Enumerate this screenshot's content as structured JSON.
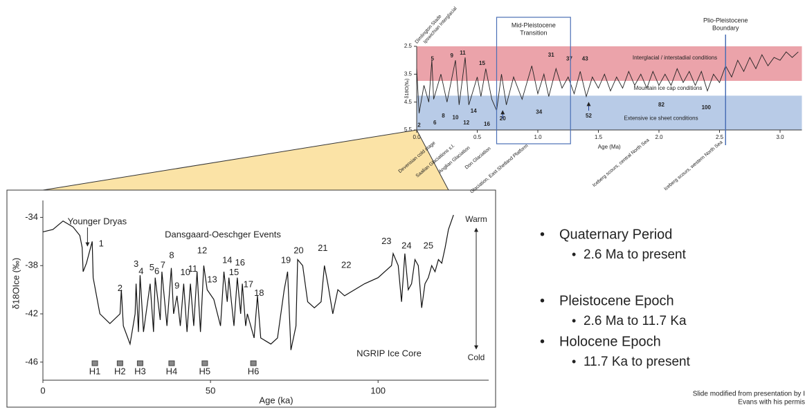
{
  "chart_data": [
    {
      "type": "line",
      "xlabel": "Age (Ma)",
      "ylabel": "δ18O(‰)",
      "color": "#222222",
      "x": [
        0.0,
        0.02,
        0.06,
        0.1,
        0.125,
        0.14,
        0.2,
        0.25,
        0.32,
        0.35,
        0.4,
        0.43,
        0.5,
        0.53,
        0.57,
        0.62,
        0.66,
        0.7,
        0.74,
        0.8,
        0.87,
        0.95,
        1.0,
        1.05,
        1.09,
        1.15,
        1.2,
        1.25,
        1.3,
        1.35,
        1.4,
        1.45,
        1.5,
        1.55,
        1.6,
        1.65,
        1.7,
        1.75,
        1.8,
        1.85,
        1.9,
        1.95,
        2.0,
        2.05,
        2.1,
        2.15,
        2.2,
        2.25,
        2.3,
        2.35,
        2.4,
        2.45,
        2.5,
        2.55,
        2.6,
        2.65,
        2.7,
        2.75,
        2.8,
        2.85,
        2.9,
        2.95,
        3.0,
        3.05,
        3.1,
        3.15
      ],
      "values": [
        3.3,
        4.9,
        3.9,
        4.5,
        3.0,
        4.4,
        3.5,
        4.5,
        3.0,
        4.6,
        2.9,
        4.6,
        3.6,
        4.3,
        3.3,
        4.4,
        4.8,
        3.5,
        4.6,
        3.6,
        4.4,
        3.2,
        4.2,
        3.5,
        4.3,
        3.3,
        4.0,
        3.6,
        4.2,
        3.4,
        4.3,
        3.6,
        4.0,
        3.5,
        4.1,
        3.6,
        4.0,
        3.4,
        3.9,
        3.5,
        4.0,
        3.4,
        3.9,
        3.5,
        3.9,
        3.3,
        3.8,
        3.4,
        3.9,
        3.4,
        4.1,
        3.5,
        3.8,
        3.2,
        3.6,
        3.0,
        3.4,
        2.9,
        3.3,
        2.8,
        3.2,
        2.9,
        3.0,
        2.7,
        2.9,
        2.7
      ],
      "xlim": [
        0,
        3.18
      ],
      "ylim": [
        2.5,
        5.5
      ],
      "yreverse": true,
      "xticks": [
        {
          "value": 0,
          "label": "0.0"
        },
        0.5,
        {
          "value": 1,
          "label": "1.0"
        },
        1.5,
        {
          "value": 2,
          "label": "2.0"
        },
        2.5,
        {
          "value": 3,
          "label": "3.0"
        }
      ],
      "yticks": [
        2.5,
        3.5,
        4.5,
        5.5
      ],
      "bands": [
        {
          "label": "Interglacial / interstadial conditions",
          "range": [
            2.5,
            3.74
          ],
          "color": "#eba3aa"
        },
        {
          "label": "Mountain ice cap conditions",
          "range": [
            3.74,
            4.27
          ],
          "color": "#ffffff"
        },
        {
          "label": "Extensive ice sheet conditions",
          "range": [
            4.27,
            5.5
          ],
          "color": "#b8cbe7"
        }
      ],
      "annotations": [
        {
          "text": "5",
          "x": 0.13,
          "y": 2.95,
          "color": "#c0001a"
        },
        {
          "text": "9",
          "x": 0.29,
          "y": 2.85,
          "color": "#c0001a"
        },
        {
          "text": "11",
          "x": 0.38,
          "y": 2.75,
          "color": "#c0001a"
        },
        {
          "text": "15",
          "x": 0.54,
          "y": 3.12,
          "color": "#c0001a"
        },
        {
          "text": "31",
          "x": 1.11,
          "y": 2.82,
          "color": "#c0001a"
        },
        {
          "text": "37",
          "x": 1.26,
          "y": 2.95,
          "color": "#c0001a"
        },
        {
          "text": "43",
          "x": 1.39,
          "y": 2.95,
          "color": "#c0001a"
        },
        {
          "text": "2",
          "x": 0.02,
          "y": 5.33,
          "color": "#1f3f9e"
        },
        {
          "text": "6",
          "x": 0.15,
          "y": 5.25,
          "color": "#1f3f9e"
        },
        {
          "text": "8",
          "x": 0.22,
          "y": 5.0,
          "color": "#1f3f9e"
        },
        {
          "text": "10",
          "x": 0.32,
          "y": 5.06,
          "color": "#1f3f9e"
        },
        {
          "text": "12",
          "x": 0.41,
          "y": 5.25,
          "color": "#1f3f9e"
        },
        {
          "text": "14",
          "x": 0.47,
          "y": 4.83,
          "color": "#1f3f9e"
        },
        {
          "text": "16",
          "x": 0.58,
          "y": 5.3,
          "color": "#1f3f9e"
        },
        {
          "text": "20",
          "x": 0.71,
          "y": 5.1,
          "color": "#1f3f9e"
        },
        {
          "text": "34",
          "x": 1.01,
          "y": 4.86,
          "color": "#1f3f9e"
        },
        {
          "text": "52",
          "x": 1.42,
          "y": 5.0,
          "color": "#1f3f9e"
        },
        {
          "text": "82",
          "x": 2.02,
          "y": 4.61,
          "color": "#1f3f9e"
        },
        {
          "text": "100",
          "x": 2.39,
          "y": 4.71,
          "color": "#1f3f9e"
        }
      ],
      "transition": {
        "label": [
          "Mid-Pleistocene",
          "Transition"
        ],
        "xlim": [
          0.66,
          1.27
        ]
      },
      "boundary": {
        "label": [
          "Plio-Pleistocene",
          "Boundary"
        ],
        "x": 2.55
      },
      "top_labels": [
        "Dimlington Stade",
        "Ipswichian Interglacial"
      ],
      "event_labels": [
        "Devensian cold stage",
        "Saalian Glaciations s.l.",
        "Anglian Glaciation",
        "Don Glaciation",
        "Glaciation, East Shetland Platform",
        "Iceberg scours, central North Sea",
        "Iceberg scours, western North Sea"
      ]
    },
    {
      "type": "line",
      "xlabel": "Age (ka)",
      "ylabel": "δ18OIce (‰)",
      "color": "#111111",
      "x": [
        0,
        3,
        6,
        9,
        11,
        11.7,
        12,
        13,
        14.7,
        15,
        17,
        20,
        23,
        23.4,
        24,
        26,
        27.5,
        27.8,
        28.5,
        29,
        30,
        32,
        33,
        33.5,
        35,
        35.5,
        37,
        38.3,
        39,
        40,
        41,
        42,
        43,
        44,
        45,
        46,
        47,
        48,
        49,
        51,
        53,
        54,
        55,
        55.5,
        57,
        58,
        59,
        59.5,
        60.5,
        61,
        63,
        64,
        65,
        68,
        70,
        72,
        73,
        74,
        75.5,
        76,
        77.5,
        79,
        81,
        83,
        84,
        85,
        86.5,
        88,
        90,
        93,
        96,
        100,
        104,
        104.5,
        106,
        107,
        108,
        109,
        110,
        111,
        112,
        113,
        114,
        115,
        116,
        117,
        118,
        119,
        120,
        121,
        122.5
      ],
      "values": [
        -35.2,
        -35,
        -34.3,
        -34.8,
        -35.5,
        -36.5,
        -38.5,
        -37.8,
        -36,
        -39,
        -42,
        -42.8,
        -42,
        -40,
        -43,
        -44.5,
        -42,
        -39.5,
        -43.5,
        -38.8,
        -43.5,
        -39.5,
        -43.5,
        -39,
        -42.5,
        -38.5,
        -43,
        -38.2,
        -42,
        -40.5,
        -43,
        -39.5,
        -43.5,
        -39.5,
        -43,
        -38.5,
        -43.5,
        -38,
        -40,
        -40.8,
        -43,
        -38.5,
        -41,
        -39,
        -43,
        -39,
        -42,
        -39.5,
        -43,
        -42,
        -44,
        -40.5,
        -44,
        -44.5,
        -44,
        -40,
        -38.5,
        -45,
        -43,
        -37.5,
        -38,
        -41,
        -41.5,
        -41,
        -38,
        -39.5,
        -42,
        -40,
        -40.5,
        -40,
        -39.5,
        -39,
        -38,
        -37,
        -38,
        -41,
        -37,
        -40,
        -39.5,
        -37.5,
        -38,
        -41.5,
        -39.5,
        -39,
        -38,
        -38.5,
        -37.5,
        -37.8,
        -36.5,
        -35,
        -33.8
      ],
      "xlim": [
        0,
        133
      ],
      "ylim": [
        -47.5,
        -32.6
      ],
      "xticks": [
        0,
        50,
        100
      ],
      "yticks": [
        -34,
        -38,
        -42,
        -46
      ],
      "annotations": [
        {
          "text": "1",
          "x": 17.4,
          "y": -36.2
        },
        {
          "text": "2",
          "x": 23,
          "y": -39.9
        },
        {
          "text": "3",
          "x": 27.8,
          "y": -37.9
        },
        {
          "text": "4",
          "x": 29.3,
          "y": -38.5
        },
        {
          "text": "5",
          "x": 32.5,
          "y": -38.2
        },
        {
          "text": "6",
          "x": 34,
          "y": -38.5
        },
        {
          "text": "7",
          "x": 35.8,
          "y": -38
        },
        {
          "text": "8",
          "x": 38.4,
          "y": -37.2
        },
        {
          "text": "9",
          "x": 40,
          "y": -39.7
        },
        {
          "text": "10",
          "x": 42.5,
          "y": -38.6
        },
        {
          "text": "11",
          "x": 44.7,
          "y": -38.3
        },
        {
          "text": "12",
          "x": 47.5,
          "y": -36.8
        },
        {
          "text": "13",
          "x": 50.5,
          "y": -39.2
        },
        {
          "text": "14",
          "x": 55,
          "y": -37.6
        },
        {
          "text": "15",
          "x": 57,
          "y": -38.6
        },
        {
          "text": "16",
          "x": 58.8,
          "y": -37.8
        },
        {
          "text": "17",
          "x": 61.3,
          "y": -39.6
        },
        {
          "text": "18",
          "x": 64.5,
          "y": -40.3
        },
        {
          "text": "19",
          "x": 72.5,
          "y": -37.6
        },
        {
          "text": "20",
          "x": 76.3,
          "y": -36.8
        },
        {
          "text": "21",
          "x": 83.5,
          "y": -36.6
        },
        {
          "text": "22",
          "x": 90.5,
          "y": -38
        },
        {
          "text": "23",
          "x": 102.5,
          "y": -36
        },
        {
          "text": "24",
          "x": 108.5,
          "y": -36.4
        },
        {
          "text": "25",
          "x": 115,
          "y": -36.4
        }
      ],
      "heinrich": [
        {
          "label": "H1",
          "x": 15.5
        },
        {
          "label": "H2",
          "x": 23
        },
        {
          "label": "H3",
          "x": 29
        },
        {
          "label": "H4",
          "x": 38.4
        },
        {
          "label": "H5",
          "x": 48.3
        },
        {
          "label": "H6",
          "x": 62.8
        }
      ],
      "younger_dryas": {
        "label": "Younger Dryas",
        "x": 13.3
      },
      "event_title": "Dansgaard-Oeschger Events",
      "core_label": "NGRIP Ice Core",
      "warm_label": "Warm",
      "cold_label": "Cold"
    }
  ],
  "bullets": [
    {
      "text": "Quaternary Period",
      "sub": [
        "2.6 Ma to present"
      ]
    },
    {
      "text": "Pleistocene Epoch",
      "sub": [
        "2.6 Ma to 11.7 Ka"
      ]
    },
    {
      "text": "Holocene Epoch",
      "sub": [
        "11.7 Ka to present"
      ]
    }
  ],
  "footnote": [
    "Slide modified from presentation by I",
    "Evans with his permis"
  ]
}
